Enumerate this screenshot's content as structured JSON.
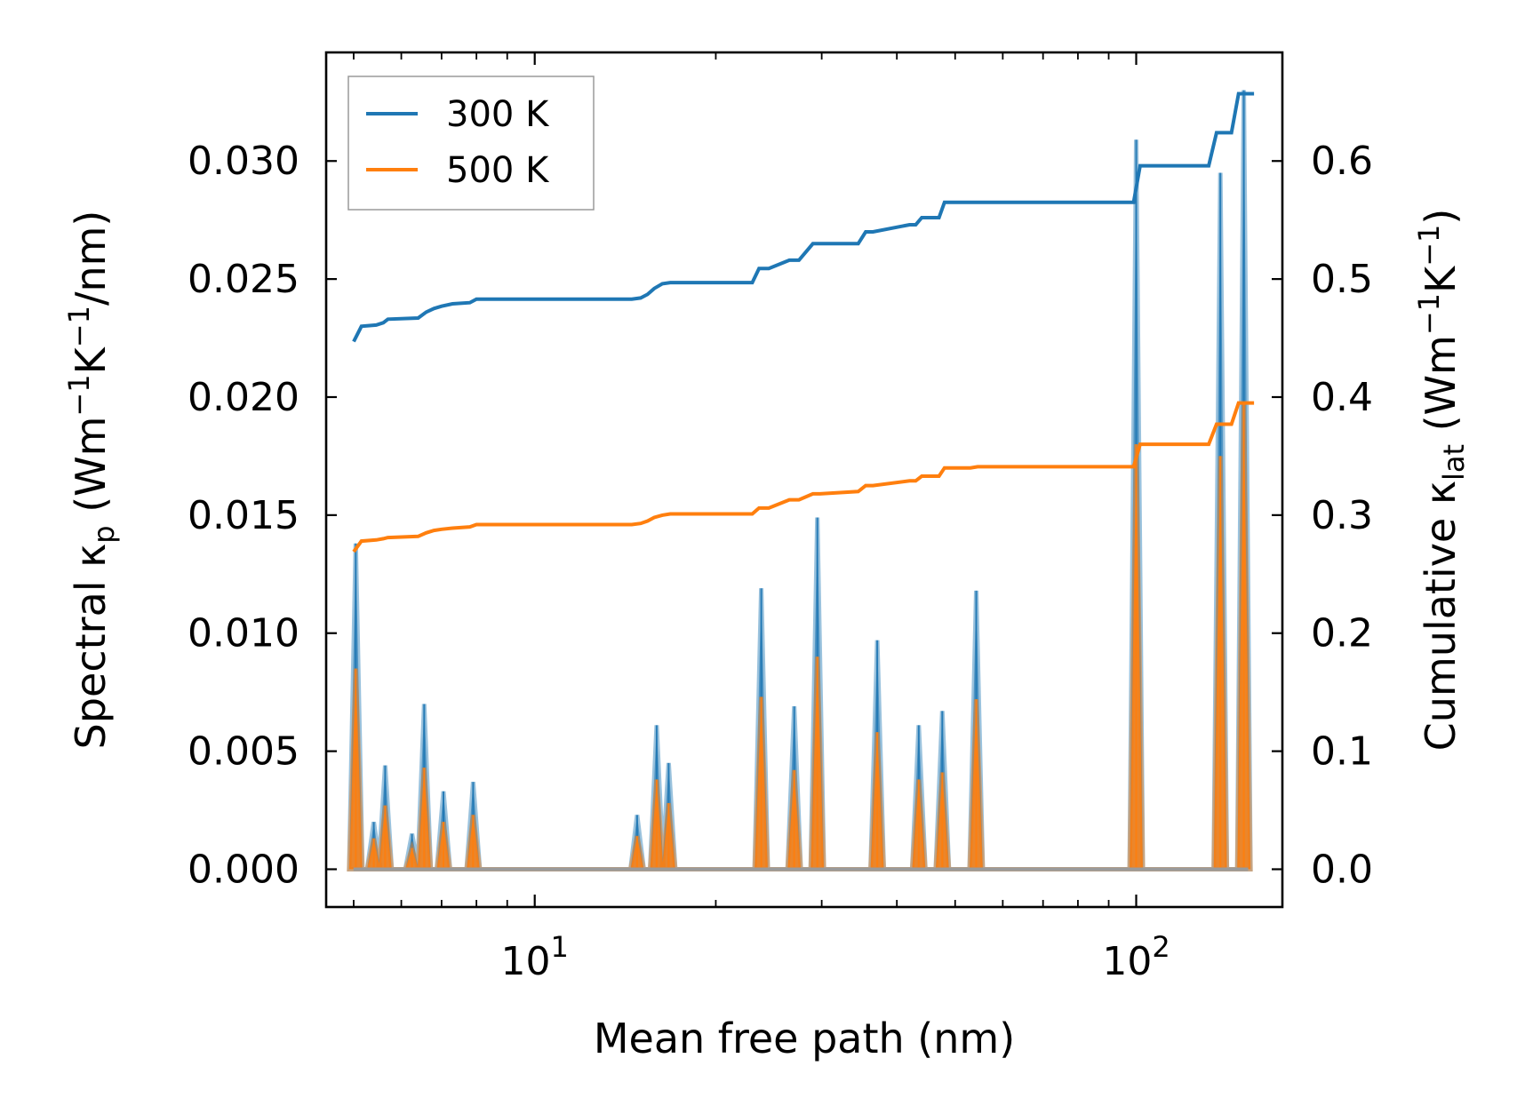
{
  "chart_data": {
    "type": "line",
    "title": "",
    "xlabel": "Mean free path (nm)",
    "xscale": "log",
    "xlim": [
      4.5,
      175
    ],
    "xtick_labels": [
      {
        "value": 10,
        "base": "10",
        "exp": "1"
      },
      {
        "value": 100,
        "base": "10",
        "exp": "2"
      }
    ],
    "ylabel_left": {
      "pre": "Spectral κ",
      "sub": "p",
      "post": " (Wm",
      "sup1": "−1",
      "mid": "K",
      "sup2": "−1",
      "end": "/nm)"
    },
    "ylim_left": [
      -0.0016,
      0.0346
    ],
    "yticks_left": [
      0.0,
      0.005,
      0.01,
      0.015,
      0.02,
      0.025,
      0.03
    ],
    "ytick_labels_left": [
      "0.000",
      "0.005",
      "0.010",
      "0.015",
      "0.020",
      "0.025",
      "0.030"
    ],
    "ylabel_right": {
      "pre": "Cumulative κ",
      "sub": "lat",
      "post": " (Wm",
      "sup1": "−1",
      "mid": "K",
      "sup2": "−1",
      "end": ")"
    },
    "ylim_right": [
      -0.032,
      0.692
    ],
    "yticks_right": [
      0.0,
      0.1,
      0.2,
      0.3,
      0.4,
      0.5,
      0.6
    ],
    "ytick_labels_right": [
      "0.0",
      "0.1",
      "0.2",
      "0.3",
      "0.4",
      "0.5",
      "0.6"
    ],
    "legend": {
      "location": "top-left",
      "entries": [
        {
          "label": "300 K",
          "color": "#1f77b4"
        },
        {
          "label": "500 K",
          "color": "#ff7f0e"
        }
      ]
    },
    "spectral_series": [
      {
        "name": "300 K",
        "axis": "left",
        "color": "#1f77b4",
        "peaks": [
          [
            5.04,
            0.0138
          ],
          [
            5.4,
            0.002
          ],
          [
            5.64,
            0.0044
          ],
          [
            6.25,
            0.0015
          ],
          [
            6.55,
            0.007
          ],
          [
            7.05,
            0.0033
          ],
          [
            7.9,
            0.0037
          ],
          [
            14.8,
            0.0023
          ],
          [
            15.95,
            0.0061
          ],
          [
            16.7,
            0.0045
          ],
          [
            23.8,
            0.0119
          ],
          [
            27.0,
            0.0069
          ],
          [
            29.5,
            0.0149
          ],
          [
            37.1,
            0.0097
          ],
          [
            43.5,
            0.0061
          ],
          [
            47.6,
            0.0067
          ],
          [
            54.2,
            0.0118
          ],
          [
            100.0,
            0.0309
          ],
          [
            138.0,
            0.0295
          ],
          [
            151.0,
            0.033
          ]
        ]
      },
      {
        "name": "500 K",
        "axis": "left",
        "color": "#ff7f0e",
        "peaks": [
          [
            5.04,
            0.0085
          ],
          [
            5.4,
            0.0013
          ],
          [
            5.64,
            0.0027
          ],
          [
            6.25,
            0.0009
          ],
          [
            6.55,
            0.0043
          ],
          [
            7.05,
            0.002
          ],
          [
            7.9,
            0.0023
          ],
          [
            14.8,
            0.0014
          ],
          [
            15.95,
            0.0038
          ],
          [
            16.7,
            0.0028
          ],
          [
            23.8,
            0.0073
          ],
          [
            27.0,
            0.0042
          ],
          [
            29.5,
            0.009
          ],
          [
            37.1,
            0.0058
          ],
          [
            43.5,
            0.0038
          ],
          [
            47.6,
            0.0041
          ],
          [
            54.2,
            0.0072
          ],
          [
            100.0,
            0.018
          ],
          [
            138.0,
            0.0175
          ],
          [
            151.0,
            0.0198
          ]
        ]
      }
    ],
    "cumulative_series": [
      {
        "name": "300 K",
        "axis": "right",
        "color": "#1f77b4",
        "x": [
          5.0,
          5.15,
          5.45,
          5.6,
          5.7,
          6.4,
          6.6,
          6.8,
          7.0,
          7.3,
          7.8,
          8.0,
          14.5,
          15.0,
          15.4,
          15.8,
          16.3,
          16.8,
          23.0,
          23.6,
          24.5,
          26.5,
          27.5,
          29.0,
          29.8,
          34.5,
          35.5,
          36.5,
          42.0,
          43.0,
          44.0,
          47.0,
          48.0,
          53.0,
          54.5,
          99.0,
          101.5,
          132.0,
          136.0,
          144.0,
          148.0,
          157.0
        ],
        "y": [
          0.447,
          0.46,
          0.461,
          0.463,
          0.466,
          0.467,
          0.472,
          0.475,
          0.477,
          0.479,
          0.48,
          0.483,
          0.483,
          0.484,
          0.487,
          0.492,
          0.496,
          0.497,
          0.497,
          0.509,
          0.509,
          0.516,
          0.516,
          0.53,
          0.53,
          0.53,
          0.54,
          0.54,
          0.546,
          0.546,
          0.552,
          0.552,
          0.565,
          0.565,
          0.565,
          0.565,
          0.596,
          0.596,
          0.624,
          0.624,
          0.657,
          0.657
        ]
      },
      {
        "name": "500 K",
        "axis": "right",
        "color": "#ff7f0e",
        "x": [
          5.0,
          5.15,
          5.45,
          5.6,
          5.7,
          6.4,
          6.6,
          6.8,
          7.0,
          7.3,
          7.8,
          8.0,
          14.5,
          15.0,
          15.4,
          15.8,
          16.3,
          16.8,
          23.0,
          23.6,
          24.5,
          26.5,
          27.5,
          29.0,
          29.8,
          34.5,
          35.5,
          36.5,
          42.0,
          43.0,
          44.0,
          47.0,
          48.0,
          53.0,
          54.5,
          99.0,
          101.5,
          132.0,
          136.0,
          144.0,
          148.0,
          157.0
        ],
        "y": [
          0.269,
          0.278,
          0.279,
          0.28,
          0.281,
          0.282,
          0.285,
          0.287,
          0.288,
          0.289,
          0.29,
          0.292,
          0.292,
          0.293,
          0.295,
          0.298,
          0.3,
          0.301,
          0.301,
          0.306,
          0.306,
          0.313,
          0.313,
          0.318,
          0.318,
          0.32,
          0.325,
          0.325,
          0.329,
          0.329,
          0.333,
          0.333,
          0.34,
          0.34,
          0.341,
          0.341,
          0.36,
          0.36,
          0.377,
          0.377,
          0.395,
          0.395
        ]
      }
    ]
  }
}
